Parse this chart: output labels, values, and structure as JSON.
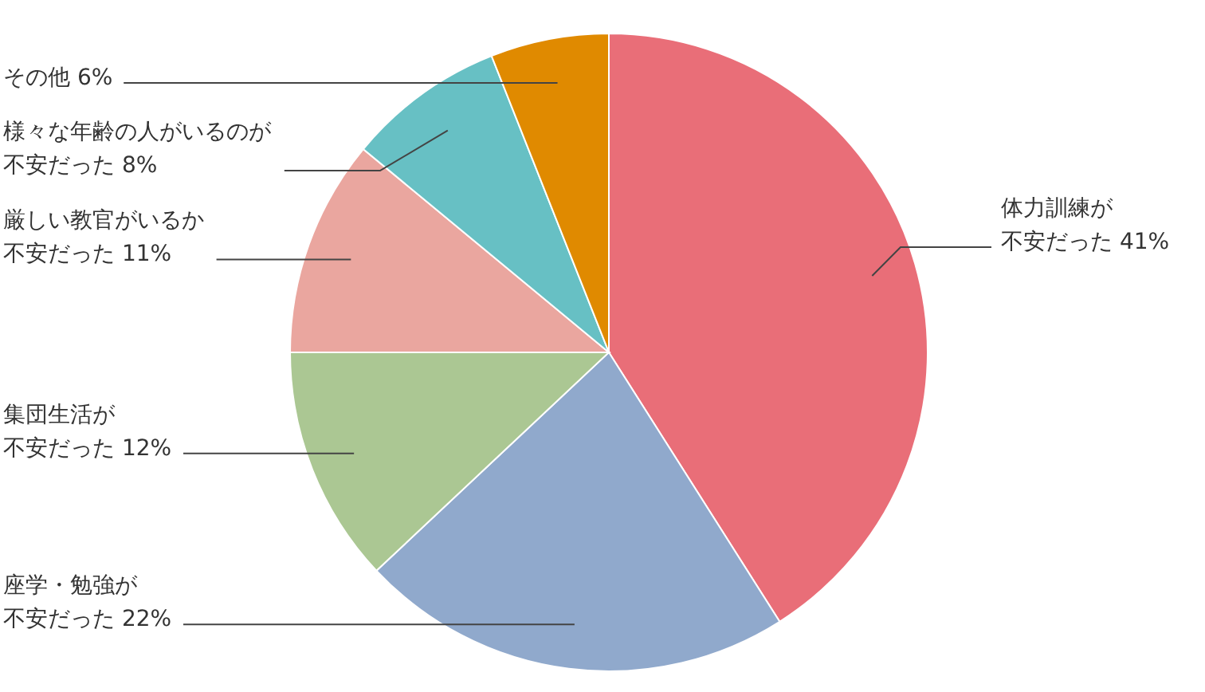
{
  "chart_data": {
    "type": "pie",
    "categories": [
      "体力訓練が不安だった",
      "座学・勉強が不安だった",
      "集団生活が不安だった",
      "厳しい教官がいるか不安だった",
      "様々な年齢の人がいるのが不安だった",
      "その他"
    ],
    "values": [
      41,
      22,
      12,
      11,
      8,
      6
    ],
    "value_labels": [
      "41%",
      "22%",
      "12%",
      "11%",
      "8%",
      "6%"
    ],
    "colors": [
      "#e96e78",
      "#90a9cc",
      "#abc793",
      "#eaa69f",
      "#67c0c4",
      "#e08a00"
    ]
  }
}
